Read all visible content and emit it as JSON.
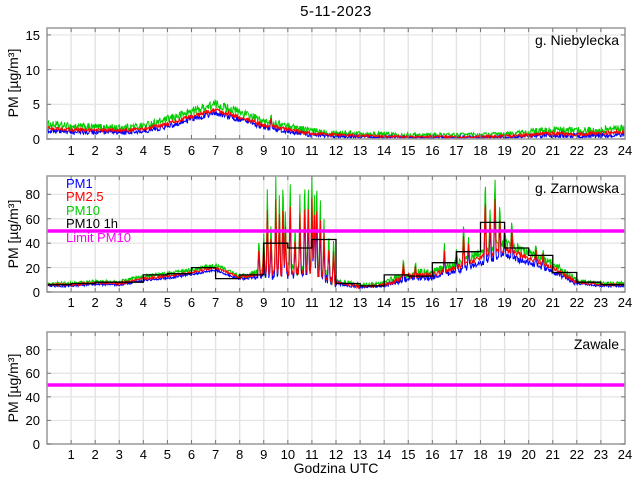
{
  "title": "5-11-2023",
  "xlabel": "Godzina UTC",
  "ylabel": "PM [µg/m³]",
  "colors": {
    "background": "#ffffff",
    "frame": "#9e9e9e",
    "grid": "#e3e3e3",
    "tick": "#777777",
    "text": "#000000",
    "pm1": "#0000ff",
    "pm25": "#ff0000",
    "pm10": "#00cc00",
    "pm10_1h": "#000000",
    "limit": "#ff00ff"
  },
  "legend": [
    {
      "label": "PM1",
      "color": "pm1"
    },
    {
      "label": "PM2.5",
      "color": "pm25"
    },
    {
      "label": "PM10",
      "color": "pm10"
    },
    {
      "label": "PM10 1h",
      "color": "pm10_1h"
    },
    {
      "label": "Limit PM10",
      "color": "limit"
    }
  ],
  "chart_data": [
    {
      "type": "line",
      "station": "g. Niebylecka",
      "ylabel": "PM [µg/m³]",
      "ylim": [
        0,
        16
      ],
      "yticks": [
        0,
        5,
        10,
        15
      ],
      "xticks": [
        1,
        2,
        3,
        4,
        5,
        6,
        7,
        8,
        9,
        10,
        11,
        12,
        13,
        14,
        15,
        16,
        17,
        18,
        19,
        20,
        21,
        22,
        23,
        24
      ],
      "x_hours": [
        0,
        1,
        2,
        3,
        4,
        5,
        6,
        7,
        8,
        9,
        10,
        11,
        12,
        13,
        14,
        15,
        16,
        17,
        18,
        19,
        20,
        21,
        22,
        23,
        24
      ],
      "series": [
        {
          "name": "PM1",
          "color": "pm1",
          "noise": 0.38,
          "hourly": [
            1.2,
            1.0,
            1.0,
            0.9,
            1.1,
            1.8,
            2.9,
            3.8,
            2.8,
            1.7,
            1.1,
            0.6,
            0.4,
            0.3,
            0.25,
            0.2,
            0.2,
            0.2,
            0.2,
            0.25,
            0.4,
            0.5,
            0.45,
            0.5,
            0.7
          ]
        },
        {
          "name": "PM2.5",
          "color": "pm25",
          "noise": 0.28,
          "hourly": [
            1.6,
            1.3,
            1.3,
            1.2,
            1.4,
            2.2,
            3.3,
            4.2,
            3.2,
            2.0,
            1.4,
            0.8,
            0.6,
            0.5,
            0.4,
            0.3,
            0.35,
            0.3,
            0.3,
            0.4,
            0.6,
            0.8,
            0.7,
            0.8,
            1.0
          ]
        },
        {
          "name": "PM10",
          "color": "pm10",
          "noise": 0.55,
          "hourly": [
            2.1,
            1.8,
            1.7,
            1.6,
            1.9,
            2.8,
            4.0,
            5.0,
            3.9,
            2.5,
            1.9,
            1.2,
            0.9,
            0.8,
            0.7,
            0.6,
            0.6,
            0.6,
            0.6,
            0.7,
            1.0,
            1.3,
            1.2,
            1.3,
            1.5
          ]
        }
      ],
      "noise_profile": [
        1,
        1,
        1,
        1,
        1,
        1.1,
        1.2,
        1.2,
        1.1,
        1,
        0.9,
        0.8,
        0.7,
        0.6,
        0.6,
        0.55,
        0.55,
        0.55,
        0.6,
        0.7,
        0.9,
        1,
        1,
        1
      ],
      "spikes": [
        {
          "t": 9.3,
          "pm10": 3.6
        }
      ],
      "spike_ratio": {
        "pm25": 0.75,
        "pm1": 0.62
      },
      "pm10_1h_hourly": null,
      "limit_pm10": null
    },
    {
      "type": "line",
      "station": "g. Zarnowska",
      "ylabel": "PM [µg/m³]",
      "ylim": [
        0,
        95
      ],
      "yticks": [
        0,
        20,
        40,
        60,
        80
      ],
      "xticks": [
        1,
        2,
        3,
        4,
        5,
        6,
        7,
        8,
        9,
        10,
        11,
        12,
        13,
        14,
        15,
        16,
        17,
        18,
        19,
        20,
        21,
        22,
        23,
        24
      ],
      "x_hours": [
        0,
        1,
        2,
        3,
        4,
        5,
        6,
        7,
        8,
        9,
        10,
        11,
        12,
        13,
        14,
        15,
        16,
        17,
        18,
        19,
        20,
        21,
        22,
        23,
        24
      ],
      "series": [
        {
          "name": "PM1",
          "color": "pm1",
          "noise": 1.0,
          "hourly": [
            5,
            5,
            6.5,
            6,
            9.5,
            11.5,
            14.5,
            18,
            10.5,
            13,
            14,
            16,
            7,
            4,
            5,
            11,
            12,
            17,
            24,
            30,
            24,
            17,
            7,
            5,
            5
          ]
        },
        {
          "name": "PM2.5",
          "color": "pm25",
          "noise": 0.9,
          "hourly": [
            6,
            6,
            7.5,
            7,
            11,
            13,
            16,
            20,
            12,
            15,
            16,
            18,
            8,
            4.5,
            6,
            13,
            14,
            20,
            28,
            35,
            28,
            20,
            8,
            6,
            6
          ]
        },
        {
          "name": "PM10",
          "color": "pm10",
          "noise": 1.6,
          "hourly": [
            7,
            7,
            8.5,
            8,
            13,
            15,
            18,
            22,
            13,
            17,
            18,
            20,
            9,
            5.5,
            7,
            15,
            16,
            23,
            32,
            40,
            32,
            23,
            9,
            7,
            7
          ]
        }
      ],
      "noise_profile": [
        1,
        1,
        1,
        1,
        1,
        1,
        1,
        1,
        1.5,
        3.5,
        3.5,
        3.5,
        1.5,
        1,
        2,
        2.2,
        2.2,
        2.5,
        2.5,
        2.5,
        2.2,
        2,
        1,
        1
      ],
      "spikes": [
        {
          "t": 8.8,
          "pm10": 45
        },
        {
          "t": 9.0,
          "pm10": 48
        },
        {
          "t": 9.15,
          "pm10": 90
        },
        {
          "t": 9.3,
          "pm10": 60
        },
        {
          "t": 9.5,
          "pm10": 95
        },
        {
          "t": 9.65,
          "pm10": 85
        },
        {
          "t": 9.8,
          "pm10": 97
        },
        {
          "t": 9.9,
          "pm10": 70
        },
        {
          "t": 10.1,
          "pm10": 95
        },
        {
          "t": 10.3,
          "pm10": 55
        },
        {
          "t": 10.5,
          "pm10": 80
        },
        {
          "t": 10.7,
          "pm10": 97
        },
        {
          "t": 10.85,
          "pm10": 90
        },
        {
          "t": 11.0,
          "pm10": 97
        },
        {
          "t": 11.1,
          "pm10": 85
        },
        {
          "t": 11.2,
          "pm10": 97
        },
        {
          "t": 11.35,
          "pm10": 80
        },
        {
          "t": 11.5,
          "pm10": 60
        },
        {
          "t": 11.7,
          "pm10": 50
        },
        {
          "t": 11.9,
          "pm10": 45
        },
        {
          "t": 14.8,
          "pm10": 28
        },
        {
          "t": 15.3,
          "pm10": 25
        },
        {
          "t": 16.5,
          "pm10": 40
        },
        {
          "t": 17.0,
          "pm10": 35
        },
        {
          "t": 17.3,
          "pm10": 60
        },
        {
          "t": 17.5,
          "pm10": 45
        },
        {
          "t": 18.2,
          "pm10": 97
        },
        {
          "t": 18.4,
          "pm10": 70
        },
        {
          "t": 18.6,
          "pm10": 97
        },
        {
          "t": 18.8,
          "pm10": 75
        },
        {
          "t": 19.0,
          "pm10": 55
        },
        {
          "t": 19.3,
          "pm10": 60
        },
        {
          "t": 20.3,
          "pm10": 40
        },
        {
          "t": 20.6,
          "pm10": 35
        }
      ],
      "spike_ratio": {
        "pm25": 0.75,
        "pm1": 0.62
      },
      "pm10_1h_hourly": [
        6,
        7,
        8,
        8,
        14,
        15,
        20,
        11,
        14,
        40,
        36,
        43,
        7,
        5,
        14,
        13,
        24,
        33,
        57,
        36,
        30,
        16,
        8,
        6
      ],
      "limit_pm10": 50
    },
    {
      "type": "line",
      "station": "Zawale",
      "ylabel": "PM [µg/m³]",
      "ylim": [
        0,
        95
      ],
      "yticks": [
        0,
        20,
        40,
        60,
        80
      ],
      "xticks": [
        1,
        2,
        3,
        4,
        5,
        6,
        7,
        8,
        9,
        10,
        11,
        12,
        13,
        14,
        15,
        16,
        17,
        18,
        19,
        20,
        21,
        22,
        23,
        24
      ],
      "x_hours": [
        0,
        1,
        2,
        3,
        4,
        5,
        6,
        7,
        8,
        9,
        10,
        11,
        12,
        13,
        14,
        15,
        16,
        17,
        18,
        19,
        20,
        21,
        22,
        23,
        24
      ],
      "series": [],
      "noise_profile": null,
      "spikes": [],
      "spike_ratio": null,
      "pm10_1h_hourly": null,
      "limit_pm10": 50
    }
  ]
}
